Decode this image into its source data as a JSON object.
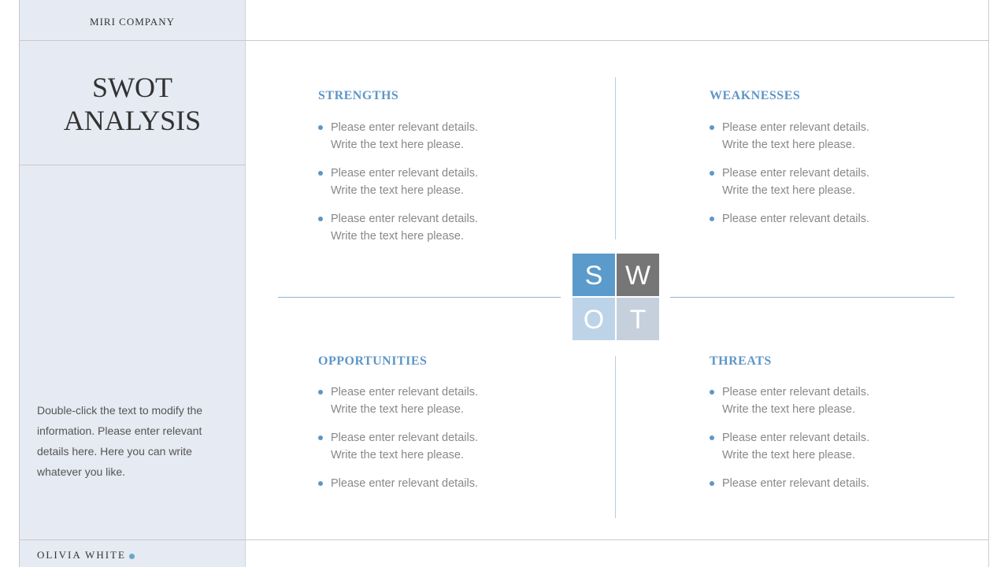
{
  "sidebar": {
    "company": "MIRI COMPANY",
    "title_line1": "SWOT",
    "title_line2": "ANALYSIS",
    "description": "Double-click the text to modify the information. Please enter relevant details here. Here you can write whatever you like.",
    "author": "OLIVIA WHITE"
  },
  "swot_letters": {
    "s": "S",
    "w": "W",
    "o": "O",
    "t": "T"
  },
  "colors": {
    "s": "#5b9bcb",
    "w": "#767676",
    "o": "#bdd3e8",
    "t": "#c5d0dc",
    "heading": "#5e96c6"
  },
  "quadrants": {
    "strengths": {
      "title": "STRENGTHS",
      "items": [
        "Please enter relevant details. Write the text here please.",
        "Please enter relevant details. Write the text here please.",
        "Please enter relevant details. Write the text here please."
      ]
    },
    "weaknesses": {
      "title": "WEAKNESSES",
      "items": [
        "Please enter relevant details. Write the text here please.",
        "Please enter relevant details. Write the text here please.",
        "Please enter relevant details."
      ]
    },
    "opportunities": {
      "title": "OPPORTUNITIES",
      "items": [
        "Please enter relevant details. Write the text here please.",
        "Please enter relevant details. Write the text here please.",
        "Please enter relevant details."
      ]
    },
    "threats": {
      "title": "THREATS",
      "items": [
        "Please enter relevant details. Write the text here please.",
        "Please enter relevant details. Write the text here please.",
        "Please enter relevant details."
      ]
    }
  }
}
